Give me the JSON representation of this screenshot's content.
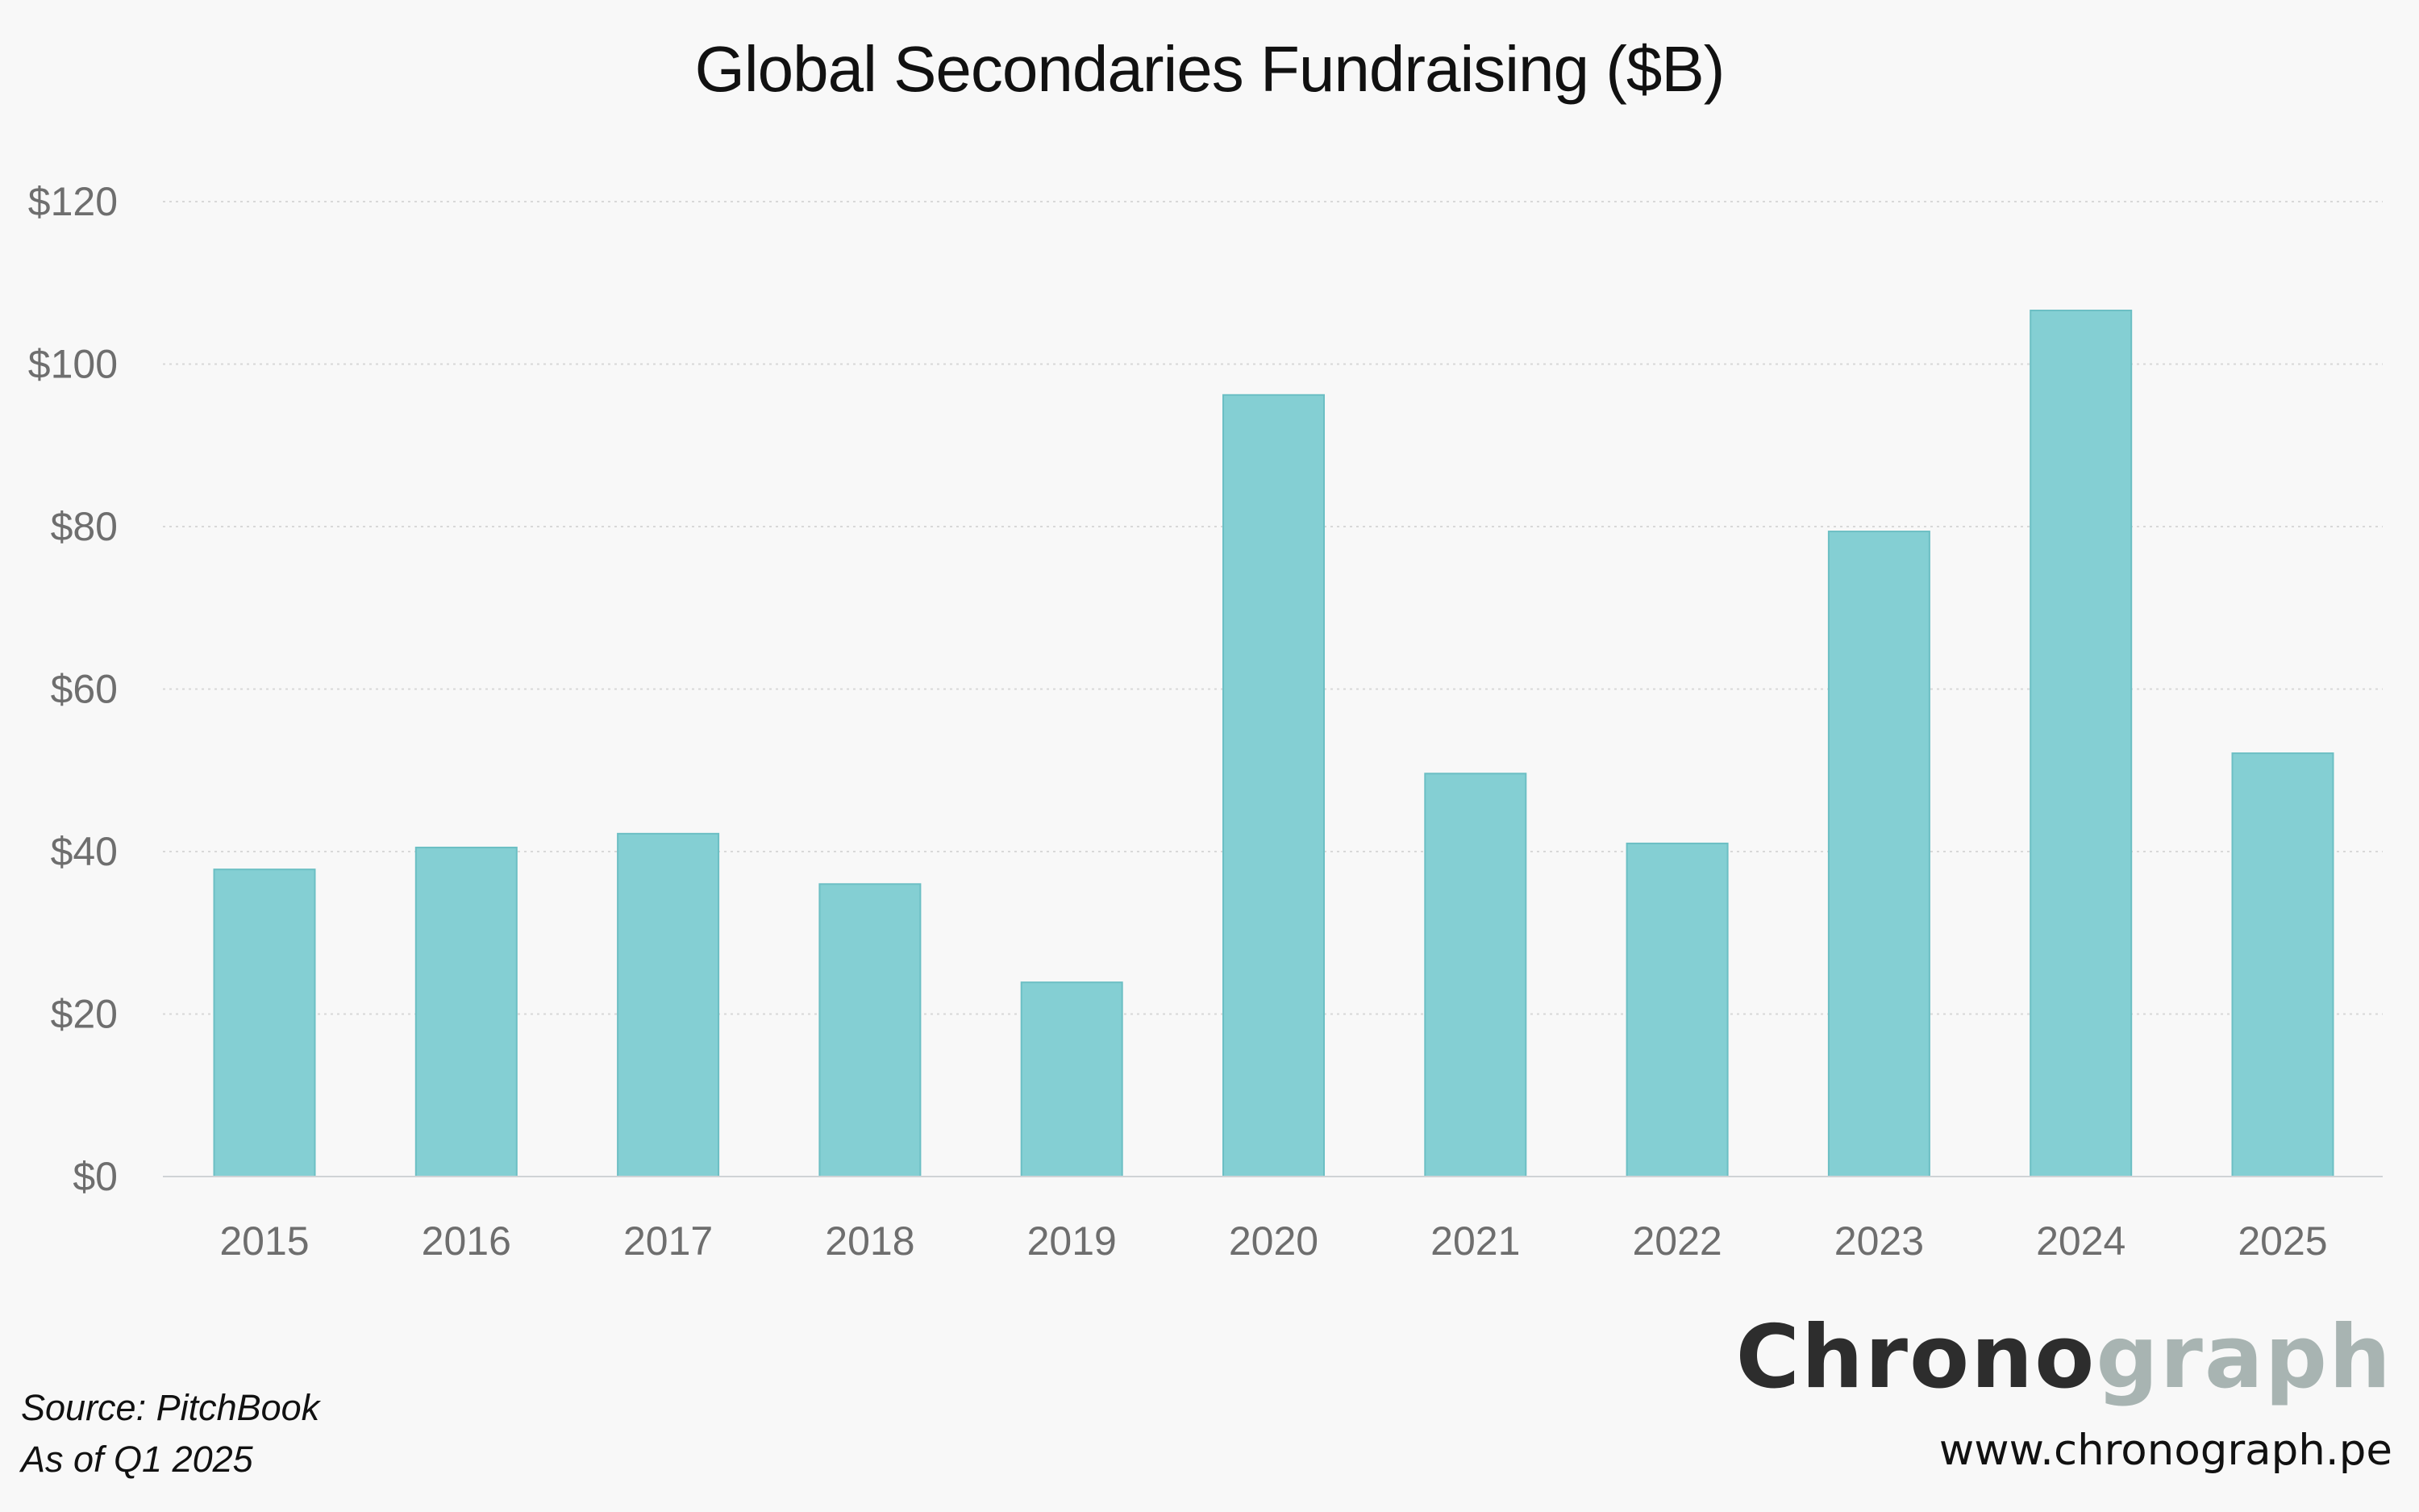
{
  "chart_data": {
    "type": "bar",
    "title": "Global Secondaries Fundraising ($B)",
    "xlabel": "",
    "ylabel": "",
    "categories": [
      "2015",
      "2016",
      "2017",
      "2018",
      "2019",
      "2020",
      "2021",
      "2022",
      "2023",
      "2024",
      "2025"
    ],
    "values": [
      37.8,
      40.5,
      42.2,
      36.0,
      23.9,
      96.2,
      49.6,
      41.0,
      79.4,
      106.6,
      52.1
    ],
    "ylim": [
      0,
      120
    ],
    "yticks": [
      0,
      20,
      40,
      60,
      80,
      100,
      120
    ],
    "ytick_labels": [
      "$0",
      "$20",
      "$40",
      "$60",
      "$80",
      "$100",
      "$120"
    ],
    "grid": true,
    "legend": "none",
    "bar_color": "#84cfd3",
    "bar_edge_color": "#6cbfc4"
  },
  "footer": {
    "source": "Source: PitchBook",
    "as_of": "As of Q1 2025"
  },
  "brand": {
    "logo_dark": "Chrono",
    "logo_light": "graph",
    "url": "www.chronograph.pe"
  }
}
